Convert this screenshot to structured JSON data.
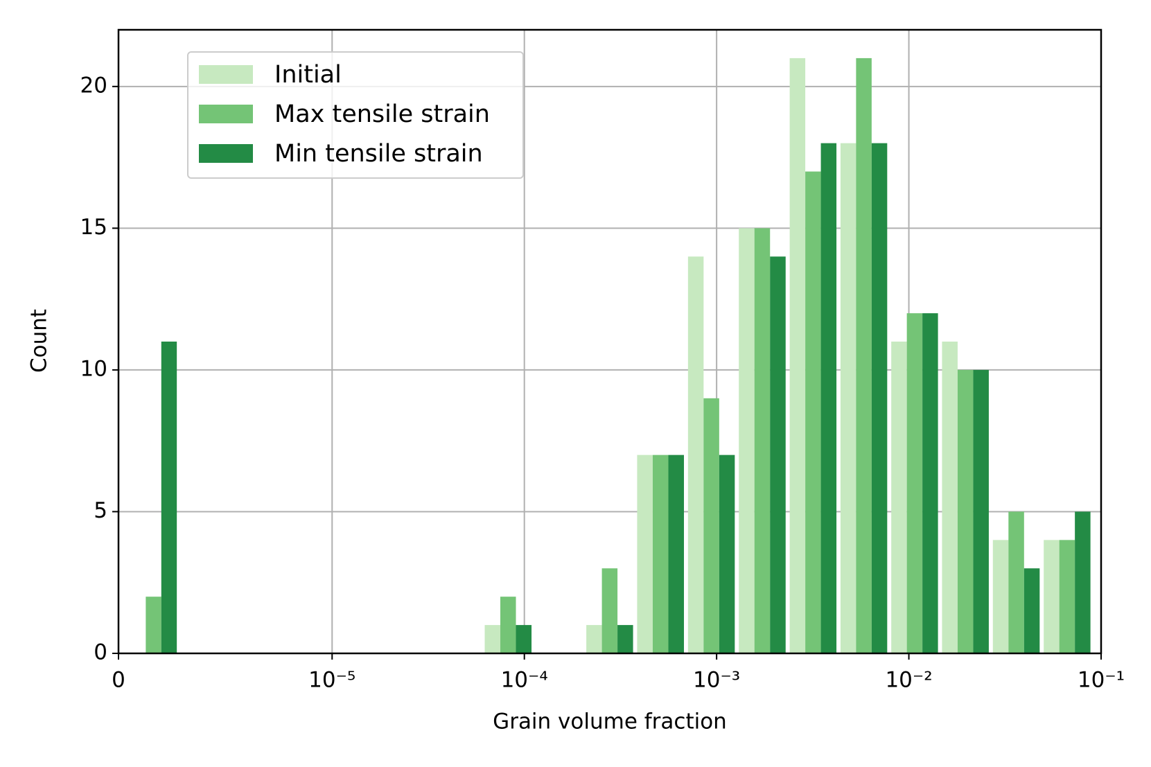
{
  "chart_data": {
    "type": "histogram",
    "xlabel": "Grain volume fraction",
    "ylabel": "Count",
    "xscale": "symlog",
    "linthresh": 1e-05,
    "bins": [
      5.5e-07,
      2.92e-06,
      5.28e-06,
      7.65e-06,
      1e-05,
      1.84e-05,
      3.39e-05,
      6.22e-05,
      0.0001144,
      0.00021,
      0.000386,
      0.00071,
      0.001305,
      0.0024,
      0.00441,
      0.0081,
      0.01488,
      0.02735,
      0.0503,
      0.0924
    ],
    "series": [
      {
        "name": "Initial",
        "color": "#c7e9c0",
        "values": [
          0,
          0,
          0,
          0,
          0,
          0,
          0,
          1,
          0,
          1,
          7,
          14,
          15,
          21,
          18,
          11,
          11,
          4,
          4
        ]
      },
      {
        "name": "Max tensile strain",
        "color": "#74c476",
        "values": [
          2,
          0,
          0,
          0,
          0,
          0,
          0,
          2,
          0,
          3,
          7,
          9,
          15,
          17,
          21,
          12,
          10,
          5,
          4
        ]
      },
      {
        "name": "Min tensile strain",
        "color": "#238b45",
        "values": [
          11,
          0,
          0,
          0,
          0,
          0,
          0,
          1,
          0,
          1,
          7,
          7,
          14,
          18,
          18,
          12,
          10,
          3,
          5
        ]
      }
    ],
    "xlim": [
      0,
      0.1
    ],
    "xticks": [
      0,
      {
        "value": 1e-05,
        "label": "10⁻⁵"
      },
      {
        "value": 0.0001,
        "label": "10⁻⁴"
      },
      {
        "value": 0.001,
        "label": "10⁻³"
      },
      {
        "value": 0.01,
        "label": "10⁻²"
      },
      {
        "value": 0.1,
        "label": "10⁻¹"
      }
    ],
    "ylim": [
      0,
      22
    ],
    "yticks": [
      0,
      5,
      10,
      15,
      20
    ],
    "grid": true,
    "legend": "upper left"
  }
}
